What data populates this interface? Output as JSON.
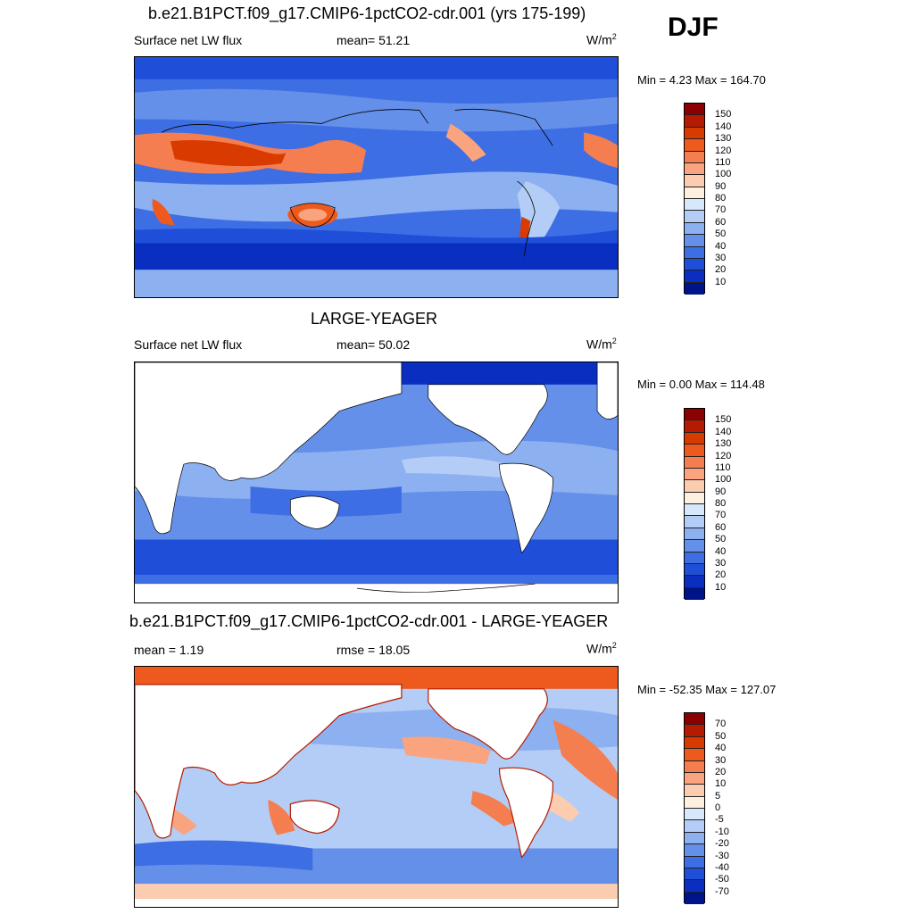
{
  "season": "DJF",
  "units_base": "W/m",
  "units_exp": "2",
  "panels": [
    {
      "title": "b.e21.B1PCT.f09_g17.CMIP6-1pctCO2-cdr.001 (yrs 175-199)",
      "variable": "Surface net LW flux",
      "stat": "mean=  51.21",
      "stat2": "",
      "minmax": "Min =   4.23 Max = 164.70",
      "colorbar_labels": [
        "150",
        "140",
        "130",
        "120",
        "110",
        "100",
        "90",
        "80",
        "70",
        "60",
        "50",
        "40",
        "30",
        "20",
        "10"
      ],
      "colors": [
        "#8b0000",
        "#b51b00",
        "#d93a00",
        "#ee5a1e",
        "#f57e50",
        "#f9a47e",
        "#fcccb0",
        "#fdf0e0",
        "#d8e8fb",
        "#b4cdf6",
        "#8cb0f0",
        "#6590ea",
        "#3e6ee4",
        "#1f4fd8",
        "#0a2fc0",
        "#00148a"
      ],
      "chart_data": {
        "type": "heatmap",
        "title": "b.e21.B1PCT.f09_g17.CMIP6-1pctCO2-cdr.001 (yrs 175-199)",
        "variable": "Surface net LW flux",
        "units": "W/m2",
        "mean": 51.21,
        "min": 4.23,
        "max": 164.7,
        "levels": [
          10,
          20,
          30,
          40,
          50,
          60,
          70,
          80,
          90,
          100,
          110,
          120,
          130,
          140,
          150
        ]
      }
    },
    {
      "title": "LARGE-YEAGER",
      "variable": "Surface net LW flux",
      "stat": "mean=  50.02",
      "stat2": "",
      "minmax": "Min =   0.00 Max = 114.48",
      "colorbar_labels": [
        "150",
        "140",
        "130",
        "120",
        "110",
        "100",
        "90",
        "80",
        "70",
        "60",
        "50",
        "40",
        "30",
        "20",
        "10"
      ],
      "colors": [
        "#8b0000",
        "#b51b00",
        "#d93a00",
        "#ee5a1e",
        "#f57e50",
        "#f9a47e",
        "#fcccb0",
        "#fdf0e0",
        "#d8e8fb",
        "#b4cdf6",
        "#8cb0f0",
        "#6590ea",
        "#3e6ee4",
        "#1f4fd8",
        "#0a2fc0",
        "#00148a"
      ],
      "chart_data": {
        "type": "heatmap",
        "title": "LARGE-YEAGER",
        "variable": "Surface net LW flux",
        "units": "W/m2",
        "mean": 50.02,
        "min": 0.0,
        "max": 114.48,
        "levels": [
          10,
          20,
          30,
          40,
          50,
          60,
          70,
          80,
          90,
          100,
          110,
          120,
          130,
          140,
          150
        ]
      }
    },
    {
      "title": "b.e21.B1PCT.f09_g17.CMIP6-1pctCO2-cdr.001 - LARGE-YEAGER",
      "variable": "",
      "stat": "mean =   1.19",
      "stat2": "rmse =  18.05",
      "minmax": "Min = -52.35 Max = 127.07",
      "colorbar_labels": [
        "70",
        "50",
        "40",
        "30",
        "20",
        "10",
        "5",
        "0",
        "-5",
        "-10",
        "-20",
        "-30",
        "-40",
        "-50",
        "-70"
      ],
      "colors": [
        "#8b0000",
        "#b51b00",
        "#d93a00",
        "#ee5a1e",
        "#f57e50",
        "#f9a47e",
        "#fcccb0",
        "#fdf0e0",
        "#d8e8fb",
        "#b4cdf6",
        "#8cb0f0",
        "#6590ea",
        "#3e6ee4",
        "#1f4fd8",
        "#0a2fc0",
        "#00148a"
      ],
      "chart_data": {
        "type": "heatmap",
        "title": "b.e21.B1PCT.f09_g17.CMIP6-1pctCO2-cdr.001 - LARGE-YEAGER",
        "units": "W/m2",
        "mean": 1.19,
        "rmse": 18.05,
        "min": -52.35,
        "max": 127.07,
        "levels": [
          -70,
          -50,
          -40,
          -30,
          -20,
          -10,
          -5,
          0,
          5,
          10,
          20,
          30,
          40,
          50,
          70
        ]
      }
    }
  ]
}
